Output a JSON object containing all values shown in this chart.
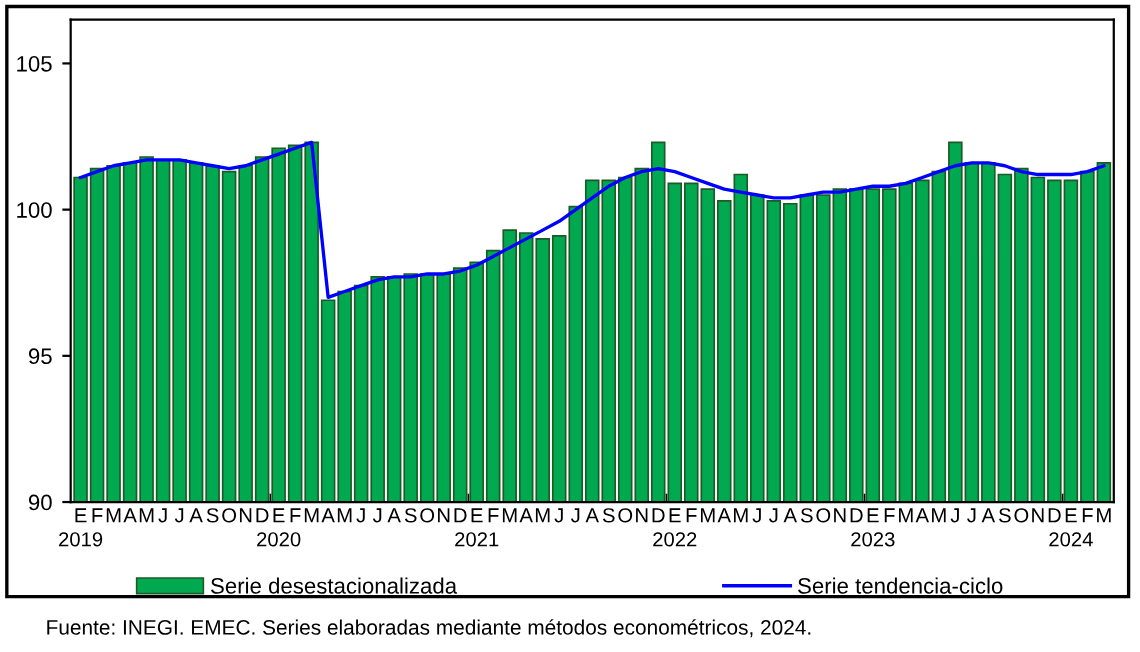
{
  "chart_data": {
    "type": "bar",
    "categories": [
      "E\n2019",
      "F",
      "M",
      "A",
      "M",
      "J",
      "J",
      "A",
      "S",
      "O",
      "N",
      "D",
      "E\n2020",
      "F",
      "M",
      "A",
      "M",
      "J",
      "J",
      "A",
      "S",
      "O",
      "N",
      "D",
      "E\n2021",
      "F",
      "M",
      "A",
      "M",
      "J",
      "J",
      "A",
      "S",
      "O",
      "N",
      "D",
      "E\n2022",
      "F",
      "M",
      "A",
      "M",
      "J",
      "J",
      "A",
      "S",
      "O",
      "N",
      "D",
      "E\n2023",
      "F",
      "M",
      "A",
      "M",
      "J",
      "J",
      "A",
      "S",
      "O",
      "N",
      "D",
      "E\n2024",
      "F",
      "M"
    ],
    "series": [
      {
        "name": "Serie desestacionalizada",
        "color": "#00a84f",
        "values": [
          101.1,
          101.4,
          101.5,
          101.6,
          101.8,
          101.7,
          101.7,
          101.6,
          101.5,
          101.3,
          101.5,
          101.8,
          102.1,
          102.2,
          102.3,
          96.9,
          97.2,
          97.4,
          97.7,
          97.7,
          97.8,
          97.8,
          97.8,
          98.0,
          98.2,
          98.6,
          99.3,
          99.2,
          99.0,
          99.1,
          100.1,
          101.0,
          101.0,
          101.1,
          101.4,
          102.3,
          100.9,
          100.9,
          100.7,
          100.3,
          101.2,
          100.5,
          100.3,
          100.2,
          100.5,
          100.5,
          100.7,
          100.7,
          100.7,
          100.7,
          100.9,
          101.0,
          101.3,
          102.3,
          101.6,
          101.6,
          101.2,
          101.4,
          101.1,
          101.0,
          101.0,
          101.3,
          101.6
        ]
      },
      {
        "name": "Serie tendencia-ciclo",
        "type": "line",
        "color": "#0000ff",
        "values": [
          101.1,
          101.3,
          101.5,
          101.6,
          101.7,
          101.7,
          101.7,
          101.6,
          101.5,
          101.4,
          101.5,
          101.7,
          101.9,
          102.1,
          102.3,
          97.0,
          97.2,
          97.4,
          97.6,
          97.7,
          97.7,
          97.8,
          97.8,
          97.9,
          98.1,
          98.4,
          98.7,
          99.0,
          99.3,
          99.6,
          100.0,
          100.4,
          100.8,
          101.1,
          101.3,
          101.4,
          101.3,
          101.1,
          100.9,
          100.7,
          100.6,
          100.5,
          100.4,
          100.4,
          100.5,
          100.6,
          100.6,
          100.7,
          100.8,
          100.8,
          100.9,
          101.1,
          101.3,
          101.5,
          101.6,
          101.6,
          101.5,
          101.3,
          101.2,
          101.2,
          101.2,
          101.3,
          101.5
        ]
      }
    ],
    "ylim": [
      90,
      106.5
    ],
    "yticks": [
      90,
      95,
      100,
      105
    ],
    "grid": false,
    "legend": "bottom",
    "annotations": [
      "Fuente: INEGI. EMEC. Series elaboradas mediante métodos econométricos, 2024."
    ]
  }
}
